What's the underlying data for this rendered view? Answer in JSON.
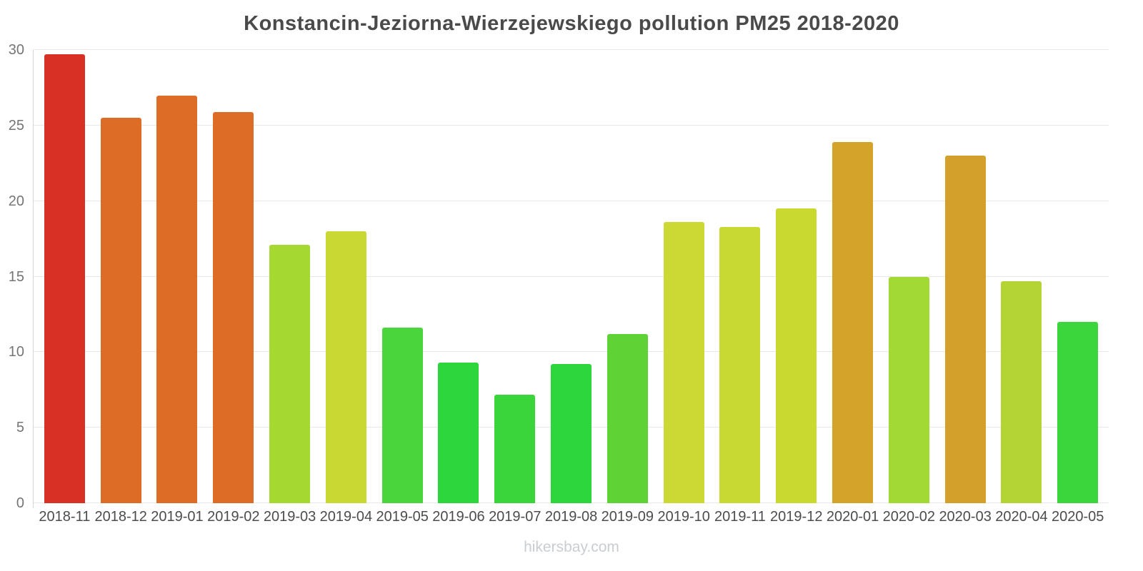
{
  "title": "Konstancin-Jeziorna-Wierzejewskiego pollution PM25 2018-2020",
  "footer": "hikersbay.com",
  "chart_data": {
    "type": "bar",
    "title": "Konstancin-Jeziorna-Wierzejewskiego pollution PM25 2018-2020",
    "xlabel": "",
    "ylabel": "",
    "ylim": [
      0,
      30
    ],
    "yticks": [
      0,
      5,
      10,
      15,
      20,
      25,
      30
    ],
    "grid": true,
    "legend": false,
    "categories": [
      "2018-11",
      "2018-12",
      "2019-01",
      "2019-02",
      "2019-03",
      "2019-04",
      "2019-05",
      "2019-06",
      "2019-07",
      "2019-08",
      "2019-09",
      "2019-10",
      "2019-11",
      "2019-12",
      "2020-01",
      "2020-02",
      "2020-03",
      "2020-04",
      "2020-05"
    ],
    "values": [
      29.7,
      25.5,
      27.0,
      25.9,
      17.1,
      18.0,
      11.6,
      9.3,
      7.2,
      9.2,
      11.2,
      18.6,
      18.3,
      19.5,
      23.9,
      15.0,
      23.0,
      14.7,
      12.0
    ],
    "bar_colors": [
      "#d93026",
      "#dd6c26",
      "#dd6c26",
      "#dd6c26",
      "#a5d830",
      "#c9d832",
      "#4ad53c",
      "#2ed63e",
      "#3ad53b",
      "#2ed63e",
      "#5fd236",
      "#ccd934",
      "#c9d933",
      "#c9d930",
      "#d4a42a",
      "#a3d934",
      "#d2a02b",
      "#b4d435",
      "#3bd63b"
    ]
  },
  "colors": {
    "gridline": "#e8e8e8",
    "axis_line": "#d4d4d4",
    "title_text": "#4a4a4a",
    "ytick_text": "#757575",
    "xtick_text": "#4c4c4c",
    "footer_text": "#c9ced3",
    "background": "#ffffff"
  }
}
